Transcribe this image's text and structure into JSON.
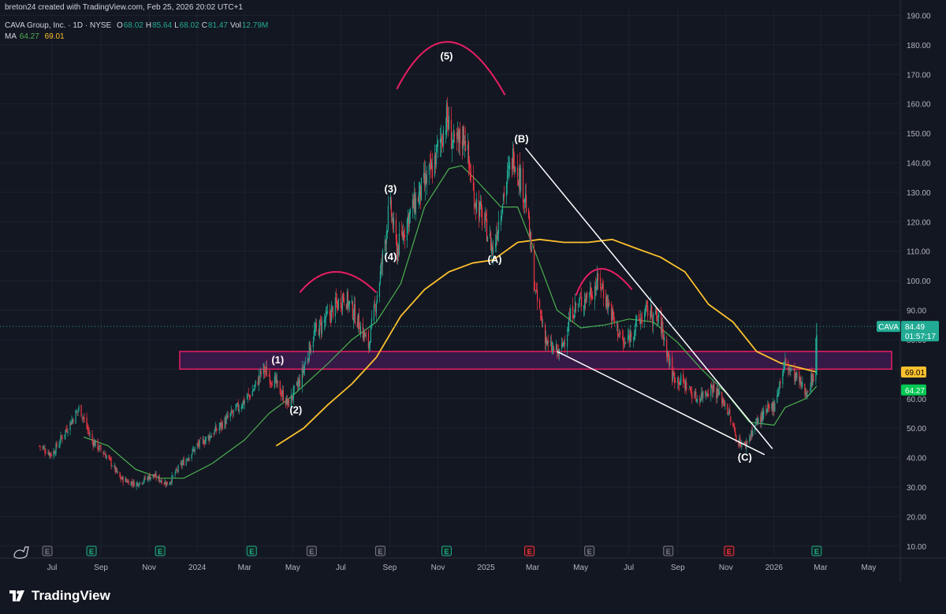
{
  "header": {
    "attribution": "breton24 created with TradingView.com, Feb 25, 2026 20:02 UTC+1",
    "symbol_line": "CAVA Group, Inc. · 1D · NYSE",
    "ohlc": [
      {
        "label": "O",
        "value": "68.02"
      },
      {
        "label": "H",
        "value": "85.64"
      },
      {
        "label": "L",
        "value": "68.02"
      },
      {
        "label": "C",
        "value": "81.47"
      },
      {
        "label": "Vol",
        "value": "12.79M"
      }
    ],
    "ma_label": "MA",
    "ma_values": [
      "64.27",
      "69.01"
    ]
  },
  "footer": {
    "brand": "TradingView"
  },
  "colors": {
    "background": "#131722",
    "up": "#22ab94",
    "down": "#f23645",
    "ma_fast": "#4caf50",
    "ma_slow": "#fbc02d",
    "zone_fill": "#3a1a4a",
    "zone_border": "#e91e63",
    "arc": "#e91e63",
    "trendline": "#ffffff"
  },
  "chart_data": {
    "type": "candlestick",
    "x_axis": {
      "ticks": [
        "Jul",
        "Sep",
        "Nov",
        "2024",
        "Mar",
        "May",
        "Jul",
        "Sep",
        "Nov",
        "2025",
        "Mar",
        "May",
        "Jul",
        "Sep",
        "Nov",
        "2026",
        "Mar",
        "May"
      ],
      "range": [
        "2023-06-15",
        "2026-05-31"
      ]
    },
    "y_axis": {
      "ticks": [
        10,
        20,
        30,
        40,
        50,
        60,
        70,
        80,
        90,
        100,
        110,
        120,
        130,
        140,
        150,
        160,
        170,
        180,
        190
      ],
      "tick_labels": [
        "10.00",
        "20.00",
        "30.00",
        "40.00",
        "50.00",
        "60.00",
        "70.00",
        "80.00",
        "90.00",
        "100.00",
        "110.00",
        "120.00",
        "130.00",
        "140.00",
        "150.00",
        "160.00",
        "170.00",
        "180.00",
        "190.00"
      ],
      "range": [
        7,
        192
      ]
    },
    "price_path": [
      [
        "2023-06-15",
        44
      ],
      [
        "2023-07-01",
        41
      ],
      [
        "2023-07-20",
        50
      ],
      [
        "2023-08-05",
        57
      ],
      [
        "2023-08-20",
        46
      ],
      [
        "2023-09-10",
        40
      ],
      [
        "2023-09-25",
        33
      ],
      [
        "2023-10-15",
        31
      ],
      [
        "2023-11-05",
        34
      ],
      [
        "2023-11-25",
        31
      ],
      [
        "2023-12-10",
        37
      ],
      [
        "2024-01-01",
        44
      ],
      [
        "2024-01-20",
        48
      ],
      [
        "2024-02-15",
        55
      ],
      [
        "2024-03-10",
        62
      ],
      [
        "2024-03-25",
        70
      ],
      [
        "2024-04-10",
        65
      ],
      [
        "2024-04-25",
        58
      ],
      [
        "2024-05-10",
        66
      ],
      [
        "2024-05-28",
        82
      ],
      [
        "2024-06-15",
        88
      ],
      [
        "2024-07-05",
        95
      ],
      [
        "2024-07-20",
        88
      ],
      [
        "2024-08-05",
        78
      ],
      [
        "2024-08-20",
        102
      ],
      [
        "2024-09-01",
        126
      ],
      [
        "2024-09-10",
        110
      ],
      [
        "2024-09-25",
        122
      ],
      [
        "2024-10-10",
        130
      ],
      [
        "2024-10-25",
        138
      ],
      [
        "2024-11-12",
        155
      ],
      [
        "2024-11-22",
        145
      ],
      [
        "2024-12-05",
        150
      ],
      [
        "2024-12-15",
        130
      ],
      [
        "2025-01-01",
        118
      ],
      [
        "2025-01-10",
        110
      ],
      [
        "2025-01-22",
        128
      ],
      [
        "2025-02-05",
        143
      ],
      [
        "2025-02-20",
        128
      ],
      [
        "2025-03-05",
        95
      ],
      [
        "2025-03-20",
        78
      ],
      [
        "2025-04-05",
        75
      ],
      [
        "2025-04-20",
        90
      ],
      [
        "2025-05-10",
        95
      ],
      [
        "2025-05-25",
        100
      ],
      [
        "2025-06-10",
        88
      ],
      [
        "2025-06-25",
        78
      ],
      [
        "2025-07-10",
        85
      ],
      [
        "2025-07-25",
        90
      ],
      [
        "2025-08-10",
        86
      ],
      [
        "2025-08-25",
        68
      ],
      [
        "2025-09-10",
        65
      ],
      [
        "2025-09-25",
        60
      ],
      [
        "2025-10-15",
        64
      ],
      [
        "2025-11-01",
        58
      ],
      [
        "2025-11-15",
        46
      ],
      [
        "2025-11-25",
        44
      ],
      [
        "2025-12-10",
        52
      ],
      [
        "2026-01-01",
        58
      ],
      [
        "2026-01-15",
        72
      ],
      [
        "2026-02-01",
        66
      ],
      [
        "2026-02-10",
        62
      ],
      [
        "2026-02-20",
        68
      ],
      [
        "2026-02-24",
        81.47
      ]
    ],
    "ma_fast_path": [
      [
        "2023-08-10",
        47
      ],
      [
        "2023-09-10",
        44
      ],
      [
        "2023-10-15",
        36
      ],
      [
        "2023-11-15",
        33
      ],
      [
        "2023-12-15",
        33
      ],
      [
        "2024-01-20",
        38
      ],
      [
        "2024-03-01",
        46
      ],
      [
        "2024-04-01",
        55
      ],
      [
        "2024-05-01",
        61
      ],
      [
        "2024-06-15",
        72
      ],
      [
        "2024-07-15",
        80
      ],
      [
        "2024-08-15",
        86
      ],
      [
        "2024-09-15",
        99
      ],
      [
        "2024-10-15",
        125
      ],
      [
        "2024-11-15",
        138
      ],
      [
        "2024-12-01",
        139
      ],
      [
        "2024-12-20",
        134
      ],
      [
        "2025-01-20",
        125
      ],
      [
        "2025-02-10",
        125
      ],
      [
        "2025-03-01",
        112
      ],
      [
        "2025-04-01",
        90
      ],
      [
        "2025-05-01",
        84
      ],
      [
        "2025-06-01",
        85
      ],
      [
        "2025-07-01",
        87
      ],
      [
        "2025-08-01",
        86
      ],
      [
        "2025-09-01",
        79
      ],
      [
        "2025-10-01",
        70
      ],
      [
        "2025-11-01",
        62
      ],
      [
        "2025-12-01",
        52
      ],
      [
        "2026-01-01",
        51
      ],
      [
        "2026-01-15",
        57
      ],
      [
        "2026-02-10",
        60
      ],
      [
        "2026-02-24",
        64.27
      ]
    ],
    "ma_slow_path": [
      [
        "2024-04-10",
        44
      ],
      [
        "2024-05-15",
        50
      ],
      [
        "2024-06-15",
        58
      ],
      [
        "2024-07-15",
        65
      ],
      [
        "2024-08-15",
        74
      ],
      [
        "2024-09-15",
        88
      ],
      [
        "2024-10-15",
        97
      ],
      [
        "2024-11-15",
        103
      ],
      [
        "2024-12-15",
        106
      ],
      [
        "2025-01-10",
        107
      ],
      [
        "2025-02-10",
        113
      ],
      [
        "2025-03-10",
        114
      ],
      [
        "2025-04-10",
        113
      ],
      [
        "2025-05-10",
        113
      ],
      [
        "2025-06-10",
        114
      ],
      [
        "2025-07-10",
        111
      ],
      [
        "2025-08-10",
        108
      ],
      [
        "2025-09-10",
        103
      ],
      [
        "2025-10-10",
        92
      ],
      [
        "2025-11-10",
        86
      ],
      [
        "2025-12-10",
        76
      ],
      [
        "2026-01-10",
        72
      ],
      [
        "2026-02-24",
        69.01
      ]
    ],
    "zone": {
      "from": "2023-06-15",
      "to": "2026-05-30",
      "low": 70,
      "high": 76
    },
    "trendlines": [
      {
        "from": [
          "2025-02-20",
          145
        ],
        "to": [
          "2025-12-30",
          43
        ]
      },
      {
        "from": [
          "2025-04-01",
          76
        ],
        "to": [
          "2025-12-20",
          41
        ]
      }
    ],
    "arcs": [
      {
        "from": [
          "2024-05-10",
          96
        ],
        "peak": [
          "2024-06-25",
          103
        ],
        "to": [
          "2024-08-15",
          96
        ]
      },
      {
        "from": [
          "2024-09-10",
          165
        ],
        "peak": [
          "2024-11-15",
          181
        ],
        "to": [
          "2025-01-25",
          163
        ]
      },
      {
        "from": [
          "2025-04-25",
          95
        ],
        "peak": [
          "2025-05-25",
          104
        ],
        "to": [
          "2025-07-05",
          97
        ]
      }
    ],
    "wave_labels": [
      {
        "text": "(1)",
        "x": "2024-04-12",
        "y": 72
      },
      {
        "text": "(2)",
        "x": "2024-05-05",
        "y": 55
      },
      {
        "text": "(3)",
        "x": "2024-09-02",
        "y": 130
      },
      {
        "text": "(4)",
        "x": "2024-09-02",
        "y": 107
      },
      {
        "text": "(5)",
        "x": "2024-11-12",
        "y": 175
      },
      {
        "text": "(A)",
        "x": "2025-01-12",
        "y": 106
      },
      {
        "text": "(B)",
        "x": "2025-02-15",
        "y": 147
      },
      {
        "text": "(C)",
        "x": "2025-11-25",
        "y": 39
      }
    ],
    "current_price_line": 84.49,
    "price_tags": [
      {
        "text": "CAVA",
        "value": 84.49
      },
      {
        "text": "84.49",
        "value": 84.49
      },
      {
        "text": "01:57:17",
        "value": 84.49
      },
      {
        "text": "69.01",
        "value": 69.01
      },
      {
        "text": "64.27",
        "value": 64.27
      }
    ],
    "event_markers": [
      {
        "date": "2023-06-25",
        "type": "E"
      },
      {
        "date": "2023-08-20",
        "type": "E",
        "positive": true
      },
      {
        "date": "2023-11-15",
        "type": "E",
        "positive": true
      },
      {
        "date": "2024-03-10",
        "type": "E",
        "positive": true
      },
      {
        "date": "2024-05-25",
        "type": "E"
      },
      {
        "date": "2024-08-20",
        "type": "E"
      },
      {
        "date": "2024-11-12",
        "type": "E",
        "positive": true
      },
      {
        "date": "2025-02-25",
        "type": "E",
        "negative": true
      },
      {
        "date": "2025-05-12",
        "type": "E"
      },
      {
        "date": "2025-08-20",
        "type": "E"
      },
      {
        "date": "2025-11-05",
        "type": "E",
        "negative": true
      },
      {
        "date": "2026-02-24",
        "type": "E",
        "positive": true
      }
    ]
  }
}
